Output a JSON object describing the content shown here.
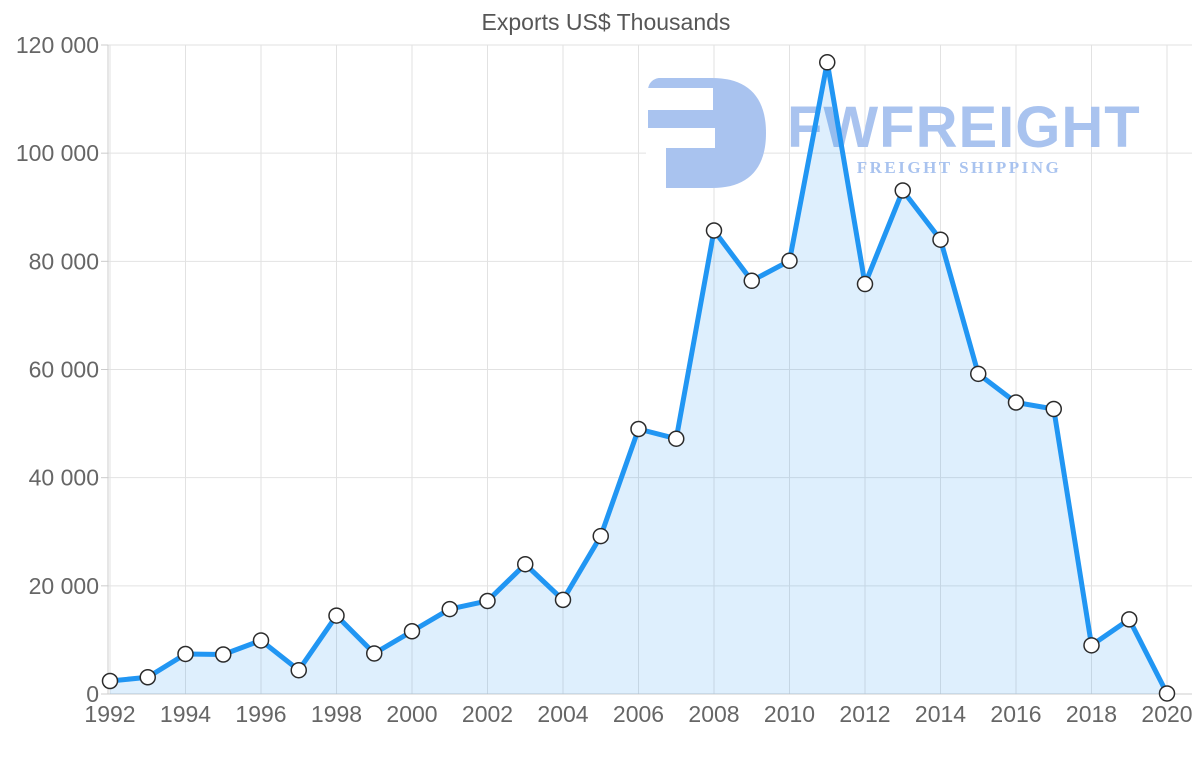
{
  "chart_data": {
    "type": "area",
    "title": "Exports US$ Thousands",
    "x": [
      1992,
      1993,
      1994,
      1995,
      1996,
      1997,
      1998,
      1999,
      2000,
      2001,
      2002,
      2003,
      2004,
      2005,
      2006,
      2007,
      2008,
      2009,
      2010,
      2011,
      2012,
      2013,
      2014,
      2015,
      2016,
      2017,
      2018,
      2019,
      2020
    ],
    "series": [
      {
        "name": "Exports US$ Thousands",
        "values": [
          2400,
          3100,
          7400,
          7300,
          9900,
          4400,
          14500,
          7500,
          11600,
          15700,
          17200,
          24000,
          17400,
          29200,
          49000,
          47200,
          85700,
          76400,
          80100,
          116800,
          75800,
          93100,
          84000,
          59200,
          53900,
          52700,
          9000,
          13800,
          100
        ]
      }
    ],
    "xlabel": "",
    "ylabel": "",
    "xlim": [
      1992,
      2020
    ],
    "ylim": [
      0,
      120000
    ],
    "y_ticks": [
      0,
      20000,
      40000,
      60000,
      80000,
      100000,
      120000
    ],
    "y_tick_labels": [
      "0",
      "20 000",
      "40 000",
      "60 000",
      "80 000",
      "100 000",
      "120 000"
    ],
    "x_ticks": [
      1992,
      1994,
      1996,
      1998,
      2000,
      2002,
      2004,
      2006,
      2008,
      2010,
      2012,
      2014,
      2016,
      2018,
      2020
    ],
    "x_tick_labels": [
      "1992",
      "1994",
      "1996",
      "1998",
      "2000",
      "2002",
      "2004",
      "2006",
      "2008",
      "2010",
      "2012",
      "2014",
      "2016",
      "2018",
      "2020"
    ],
    "grid": "on",
    "legend": "none",
    "marker": "circle-open"
  },
  "watermark": {
    "brand": "FWFREIGHT",
    "tagline": "FREIGHT SHIPPING",
    "color": "#a9c3ef"
  },
  "colors": {
    "line": "#2196f3",
    "area_fill": "rgba(33,150,243,0.15)",
    "marker_fill": "#ffffff",
    "marker_stroke": "#2b2b2b",
    "grid": "#e2e2e2",
    "axis": "#cccccc",
    "tick_label": "#666666",
    "title": "#565656"
  }
}
